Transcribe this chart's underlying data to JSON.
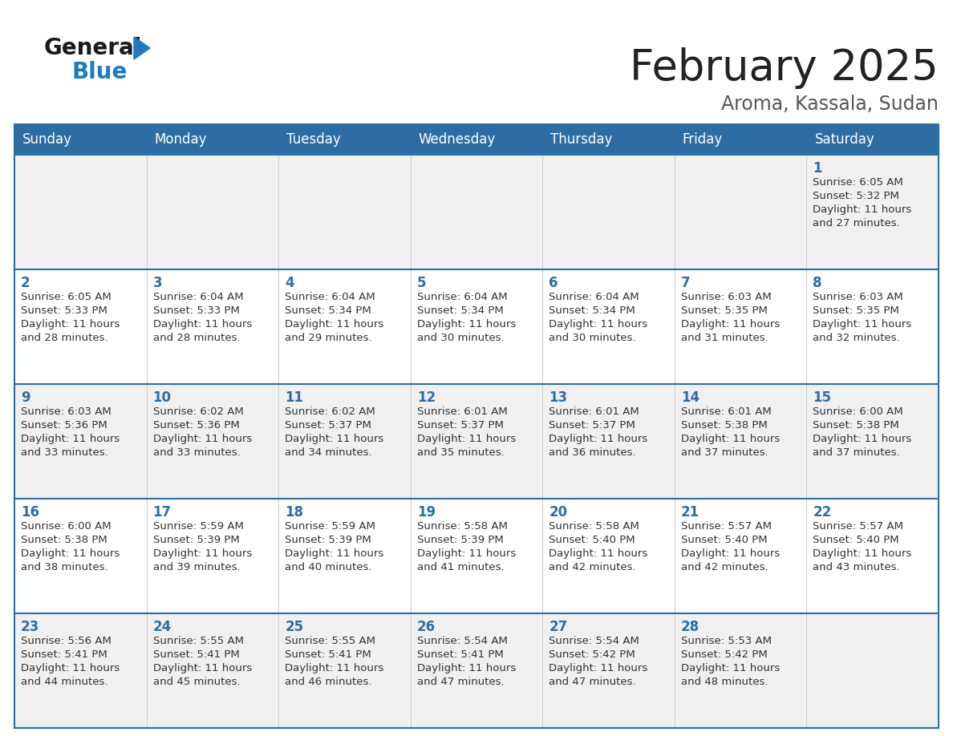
{
  "title": "February 2025",
  "subtitle": "Aroma, Kassala, Sudan",
  "days_of_week": [
    "Sunday",
    "Monday",
    "Tuesday",
    "Wednesday",
    "Thursday",
    "Friday",
    "Saturday"
  ],
  "header_bg": "#2E6DA4",
  "header_text": "#FFFFFF",
  "cell_bg_row0": "#F0F0F0",
  "cell_bg_row1": "#FFFFFF",
  "cell_bg_row2": "#F0F0F0",
  "cell_bg_row3": "#FFFFFF",
  "cell_bg_row4": "#F0F0F0",
  "cell_border": "#AAAAAA",
  "row_separator": "#2E6DA4",
  "day_number_color": "#2E6DA4",
  "info_text_color": "#333333",
  "title_color": "#222222",
  "subtitle_color": "#555555",
  "logo_general_color": "#1A1A1A",
  "logo_blue_color": "#1E7BBF",
  "calendar": [
    [
      null,
      null,
      null,
      null,
      null,
      null,
      {
        "day": "1",
        "sunrise": "6:05 AM",
        "sunset": "5:32 PM",
        "daylight": "11 hours",
        "daylight2": "and 27 minutes."
      }
    ],
    [
      {
        "day": "2",
        "sunrise": "6:05 AM",
        "sunset": "5:33 PM",
        "daylight": "11 hours",
        "daylight2": "and 28 minutes."
      },
      {
        "day": "3",
        "sunrise": "6:04 AM",
        "sunset": "5:33 PM",
        "daylight": "11 hours",
        "daylight2": "and 28 minutes."
      },
      {
        "day": "4",
        "sunrise": "6:04 AM",
        "sunset": "5:34 PM",
        "daylight": "11 hours",
        "daylight2": "and 29 minutes."
      },
      {
        "day": "5",
        "sunrise": "6:04 AM",
        "sunset": "5:34 PM",
        "daylight": "11 hours",
        "daylight2": "and 30 minutes."
      },
      {
        "day": "6",
        "sunrise": "6:04 AM",
        "sunset": "5:34 PM",
        "daylight": "11 hours",
        "daylight2": "and 30 minutes."
      },
      {
        "day": "7",
        "sunrise": "6:03 AM",
        "sunset": "5:35 PM",
        "daylight": "11 hours",
        "daylight2": "and 31 minutes."
      },
      {
        "day": "8",
        "sunrise": "6:03 AM",
        "sunset": "5:35 PM",
        "daylight": "11 hours",
        "daylight2": "and 32 minutes."
      }
    ],
    [
      {
        "day": "9",
        "sunrise": "6:03 AM",
        "sunset": "5:36 PM",
        "daylight": "11 hours",
        "daylight2": "and 33 minutes."
      },
      {
        "day": "10",
        "sunrise": "6:02 AM",
        "sunset": "5:36 PM",
        "daylight": "11 hours",
        "daylight2": "and 33 minutes."
      },
      {
        "day": "11",
        "sunrise": "6:02 AM",
        "sunset": "5:37 PM",
        "daylight": "11 hours",
        "daylight2": "and 34 minutes."
      },
      {
        "day": "12",
        "sunrise": "6:01 AM",
        "sunset": "5:37 PM",
        "daylight": "11 hours",
        "daylight2": "and 35 minutes."
      },
      {
        "day": "13",
        "sunrise": "6:01 AM",
        "sunset": "5:37 PM",
        "daylight": "11 hours",
        "daylight2": "and 36 minutes."
      },
      {
        "day": "14",
        "sunrise": "6:01 AM",
        "sunset": "5:38 PM",
        "daylight": "11 hours",
        "daylight2": "and 37 minutes."
      },
      {
        "day": "15",
        "sunrise": "6:00 AM",
        "sunset": "5:38 PM",
        "daylight": "11 hours",
        "daylight2": "and 37 minutes."
      }
    ],
    [
      {
        "day": "16",
        "sunrise": "6:00 AM",
        "sunset": "5:38 PM",
        "daylight": "11 hours",
        "daylight2": "and 38 minutes."
      },
      {
        "day": "17",
        "sunrise": "5:59 AM",
        "sunset": "5:39 PM",
        "daylight": "11 hours",
        "daylight2": "and 39 minutes."
      },
      {
        "day": "18",
        "sunrise": "5:59 AM",
        "sunset": "5:39 PM",
        "daylight": "11 hours",
        "daylight2": "and 40 minutes."
      },
      {
        "day": "19",
        "sunrise": "5:58 AM",
        "sunset": "5:39 PM",
        "daylight": "11 hours",
        "daylight2": "and 41 minutes."
      },
      {
        "day": "20",
        "sunrise": "5:58 AM",
        "sunset": "5:40 PM",
        "daylight": "11 hours",
        "daylight2": "and 42 minutes."
      },
      {
        "day": "21",
        "sunrise": "5:57 AM",
        "sunset": "5:40 PM",
        "daylight": "11 hours",
        "daylight2": "and 42 minutes."
      },
      {
        "day": "22",
        "sunrise": "5:57 AM",
        "sunset": "5:40 PM",
        "daylight": "11 hours",
        "daylight2": "and 43 minutes."
      }
    ],
    [
      {
        "day": "23",
        "sunrise": "5:56 AM",
        "sunset": "5:41 PM",
        "daylight": "11 hours",
        "daylight2": "and 44 minutes."
      },
      {
        "day": "24",
        "sunrise": "5:55 AM",
        "sunset": "5:41 PM",
        "daylight": "11 hours",
        "daylight2": "and 45 minutes."
      },
      {
        "day": "25",
        "sunrise": "5:55 AM",
        "sunset": "5:41 PM",
        "daylight": "11 hours",
        "daylight2": "and 46 minutes."
      },
      {
        "day": "26",
        "sunrise": "5:54 AM",
        "sunset": "5:41 PM",
        "daylight": "11 hours",
        "daylight2": "and 47 minutes."
      },
      {
        "day": "27",
        "sunrise": "5:54 AM",
        "sunset": "5:42 PM",
        "daylight": "11 hours",
        "daylight2": "and 47 minutes."
      },
      {
        "day": "28",
        "sunrise": "5:53 AM",
        "sunset": "5:42 PM",
        "daylight": "11 hours",
        "daylight2": "and 48 minutes."
      },
      null
    ]
  ]
}
